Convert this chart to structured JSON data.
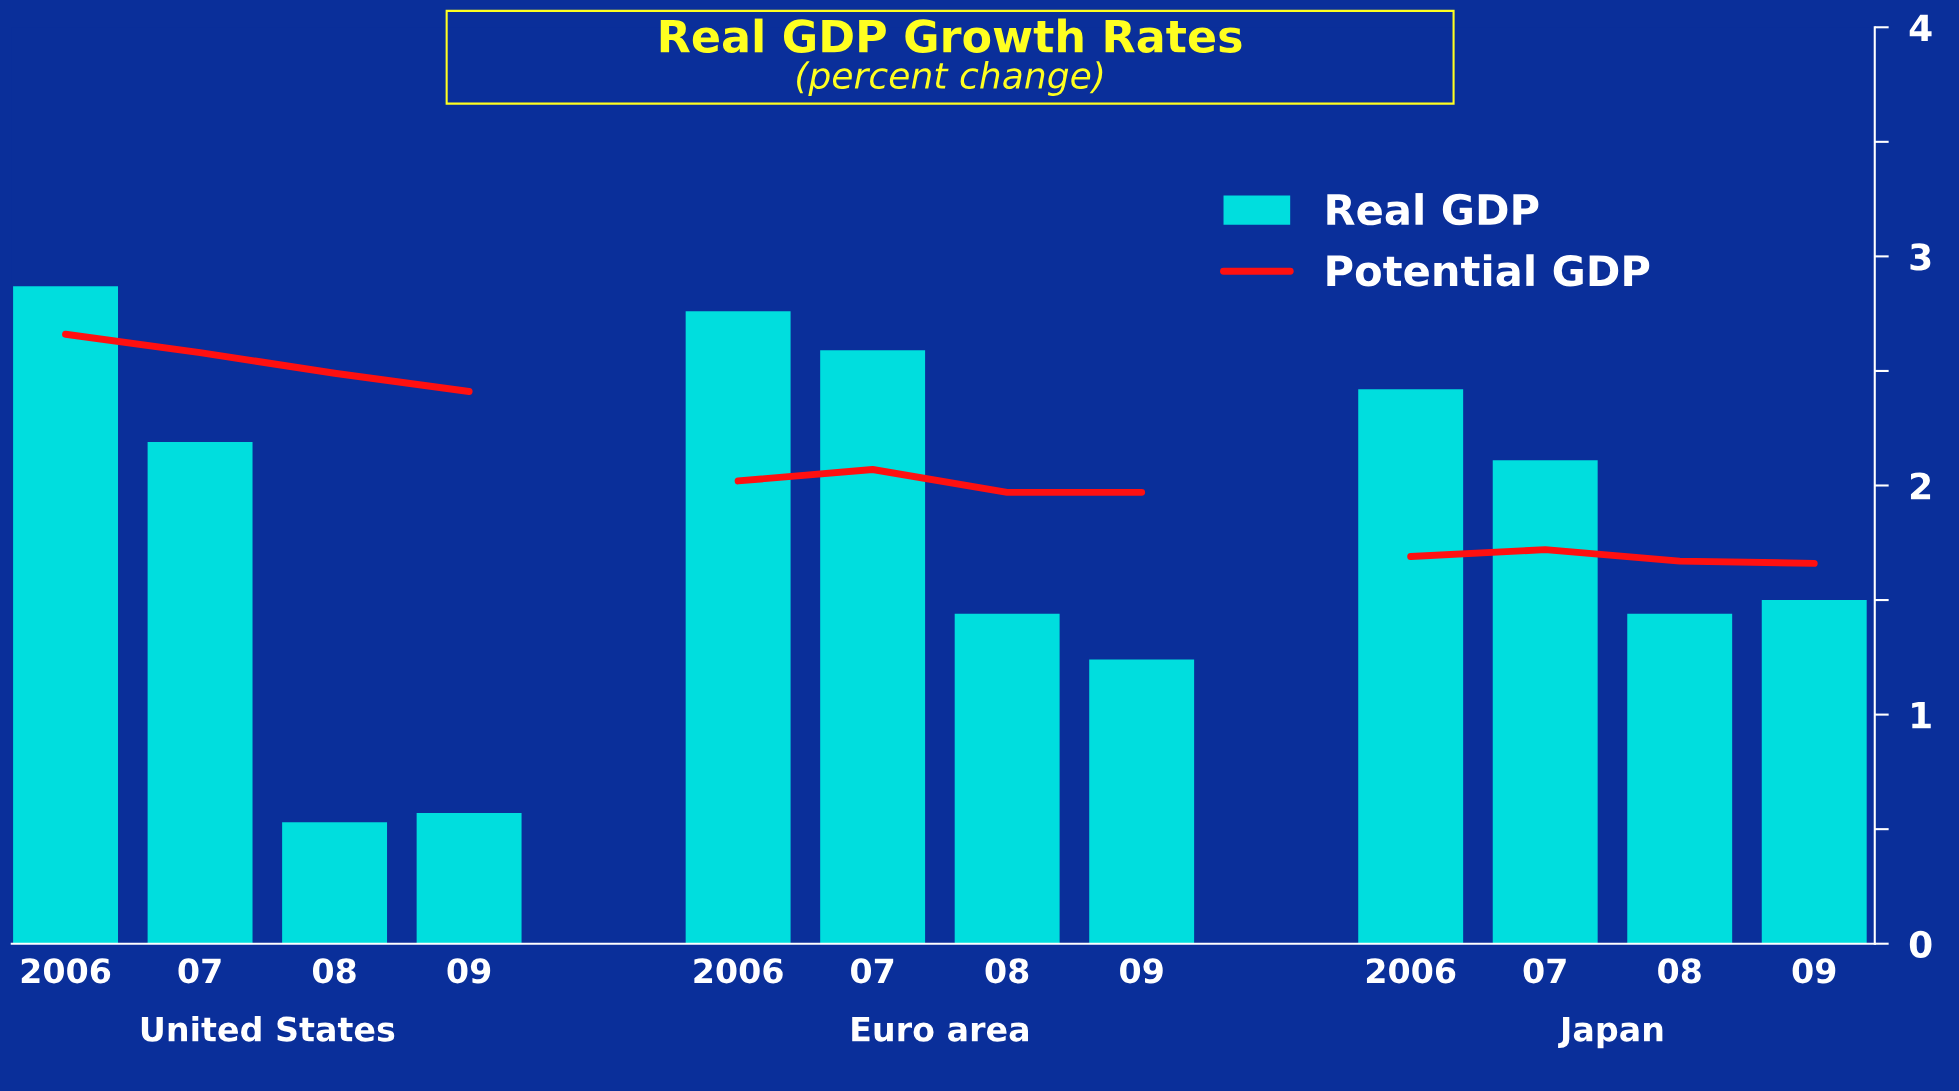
{
  "chart_data": {
    "type": "bar",
    "title": "Real GDP Growth Rates",
    "subtitle": "(percent change)",
    "categories": [
      "2006",
      "07",
      "08",
      "09",
      null,
      "2006",
      "07",
      "08",
      "09",
      null,
      "2006",
      "07",
      "08",
      "09"
    ],
    "series": [
      {
        "name": "Real GDP",
        "color": "#00dede",
        "values": [
          2.87,
          2.19,
          0.53,
          0.57,
          null,
          2.76,
          2.59,
          1.44,
          1.24,
          null,
          2.42,
          2.11,
          1.44,
          1.5
        ]
      },
      {
        "name": "Potential GDP",
        "type": "line",
        "color": "#ff1010",
        "values": [
          2.66,
          2.58,
          2.49,
          2.41,
          null,
          2.02,
          2.07,
          1.97,
          1.97,
          null,
          1.69,
          1.72,
          1.67,
          1.66
        ]
      }
    ],
    "annotations": [
      "United States",
      "Euro area",
      "Japan"
    ],
    "ylim": [
      0,
      4
    ],
    "yticks": [
      0,
      {
        "value": 0.5,
        "label": null
      },
      1,
      {
        "value": 1.5,
        "label": null
      },
      2,
      {
        "value": 2.5,
        "label": null
      },
      3,
      {
        "value": 3.5,
        "label": null
      },
      4
    ],
    "grid": false,
    "legend": "top right",
    "marker": "none",
    "line_style": "solid"
  }
}
